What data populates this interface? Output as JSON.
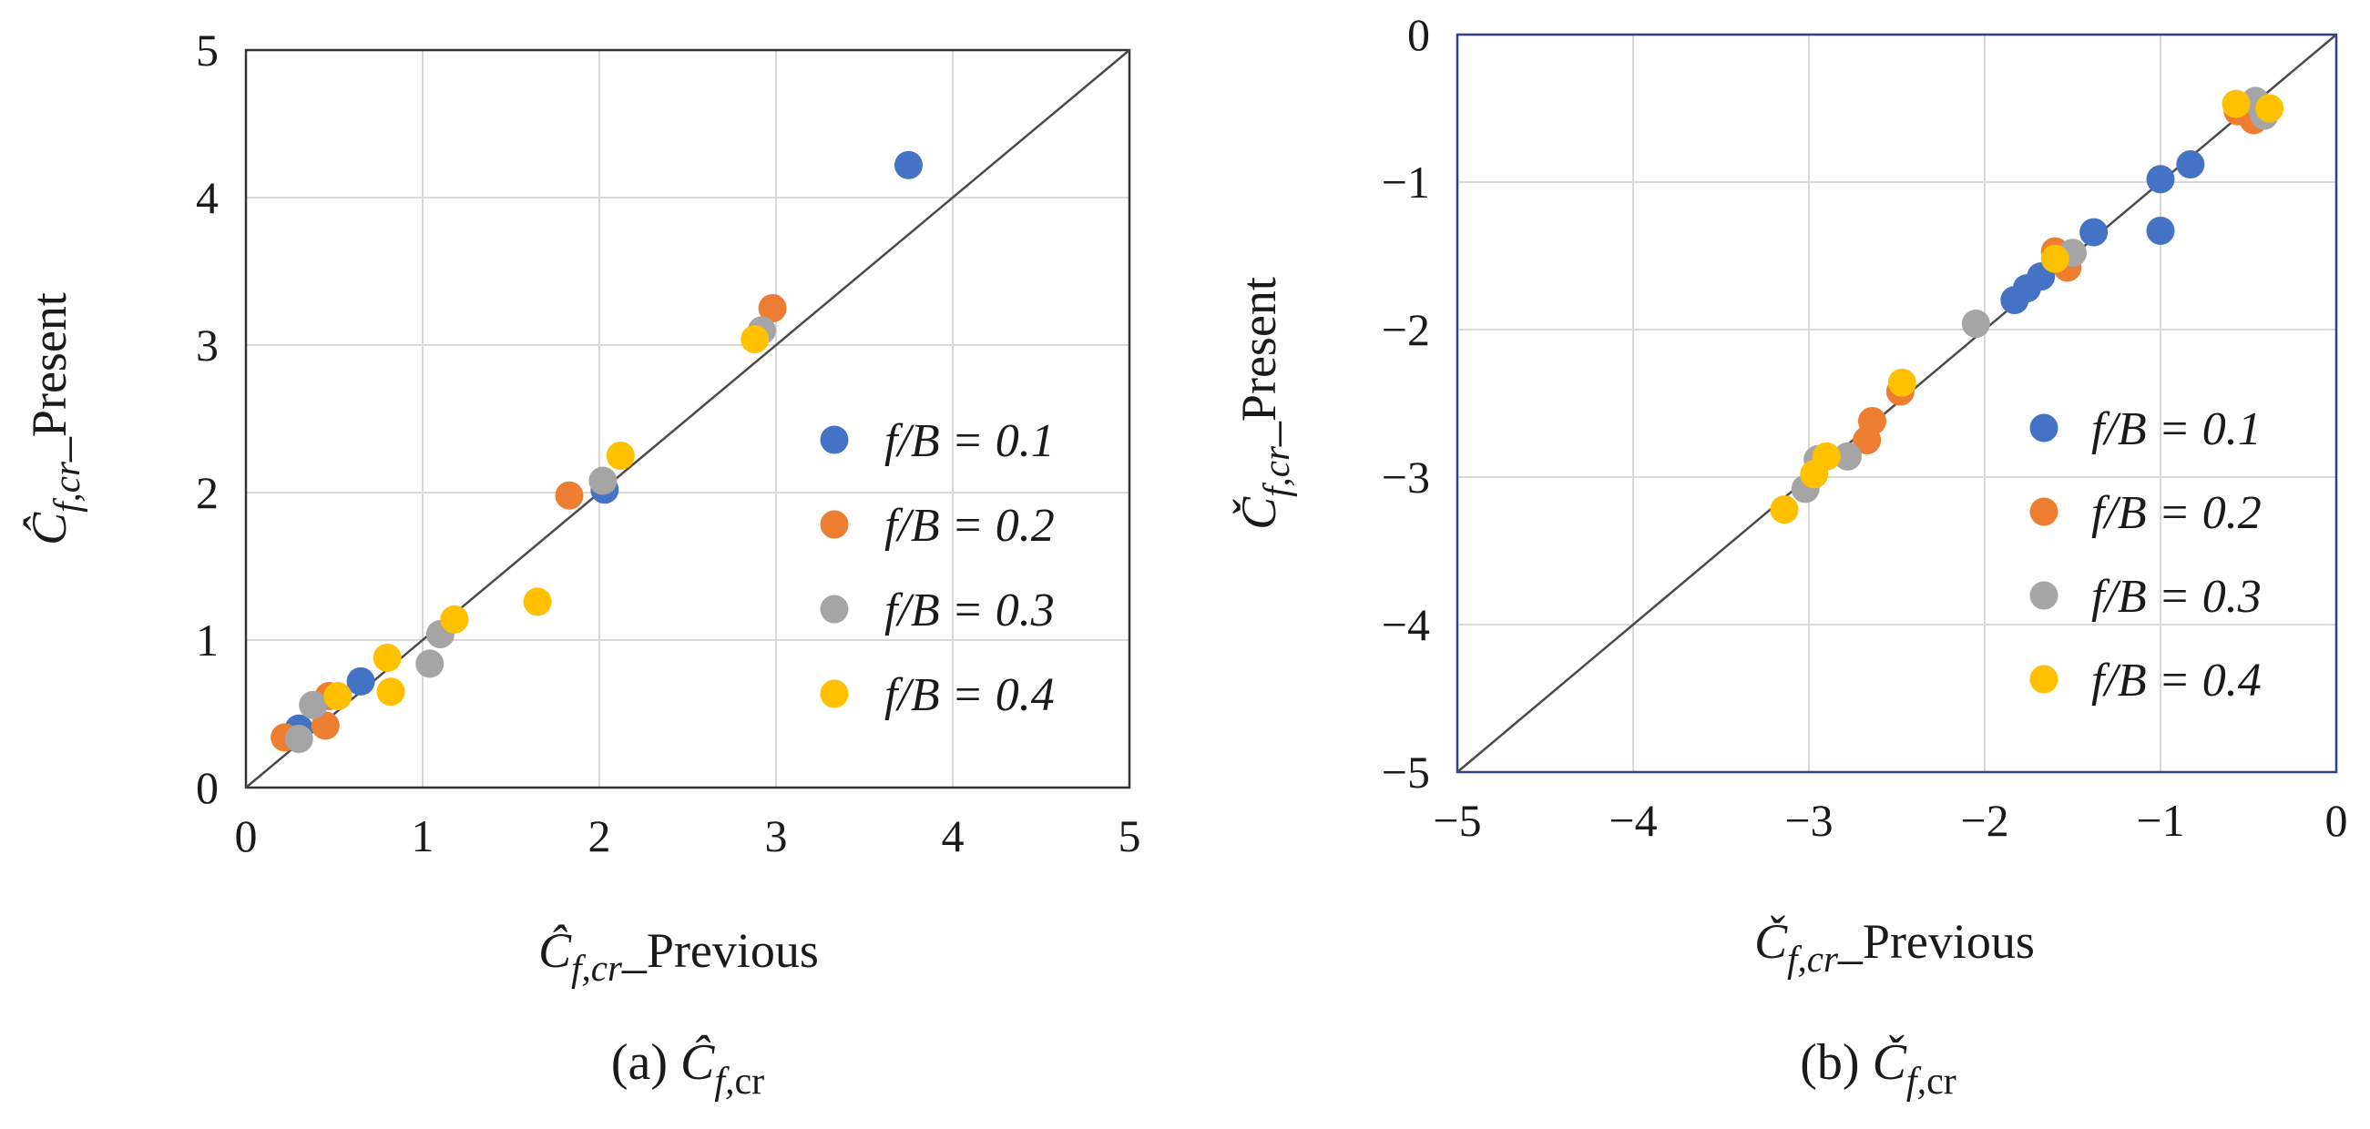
{
  "colors": {
    "s01": "#4472C4",
    "s02": "#ED7D31",
    "s03": "#A5A5A5",
    "s04": "#FFC000"
  },
  "chart_data": [
    {
      "id": "a",
      "type": "scatter",
      "caption": "(a) Ĉf,cr",
      "caption_parts": {
        "prefix": "(a)",
        "symbol": "Ĉ",
        "subscript": "f,cr"
      },
      "xlabel": "Ĉf,cr_Previous",
      "ylabel": "Ĉf,cr_Present",
      "xlabel_parts": {
        "symbol": "Ĉ",
        "subscript": "f,cr",
        "suffix": "_Previous"
      },
      "ylabel_parts": {
        "symbol": "Ĉ",
        "subscript": "f,cr",
        "suffix": "_Present"
      },
      "xlim": [
        0,
        5
      ],
      "ylim": [
        0,
        5
      ],
      "xticks": [
        "0",
        "1",
        "2",
        "3",
        "4",
        "5"
      ],
      "yticks": [
        "0",
        "1",
        "2",
        "3",
        "4",
        "5"
      ],
      "grid": true,
      "reference_line": "y = x",
      "legend_position": "right",
      "series": [
        {
          "name": "f/B = 0.1",
          "color": "#4472C4",
          "points": [
            [
              0.3,
              0.4
            ],
            [
              0.65,
              0.72
            ],
            [
              2.03,
              2.02
            ],
            [
              3.75,
              4.22
            ]
          ]
        },
        {
          "name": "f/B = 0.2",
          "color": "#ED7D31",
          "points": [
            [
              0.22,
              0.34
            ],
            [
              0.45,
              0.42
            ],
            [
              0.47,
              0.62
            ],
            [
              1.83,
              1.98
            ],
            [
              2.98,
              3.25
            ]
          ]
        },
        {
          "name": "f/B = 0.3",
          "color": "#A5A5A5",
          "points": [
            [
              0.3,
              0.33
            ],
            [
              0.38,
              0.56
            ],
            [
              1.04,
              0.84
            ],
            [
              1.1,
              1.04
            ],
            [
              2.02,
              2.08
            ],
            [
              2.92,
              3.1
            ]
          ]
        },
        {
          "name": "f/B = 0.4",
          "color": "#FFC000",
          "points": [
            [
              0.52,
              0.62
            ],
            [
              0.8,
              0.88
            ],
            [
              0.82,
              0.65
            ],
            [
              1.18,
              1.14
            ],
            [
              1.65,
              1.26
            ],
            [
              2.12,
              2.25
            ],
            [
              2.88,
              3.04
            ]
          ]
        }
      ]
    },
    {
      "id": "b",
      "type": "scatter",
      "caption": "(b) Čf,cr",
      "caption_parts": {
        "prefix": "(b)",
        "symbol": "Č",
        "subscript": "f,cr"
      },
      "xlabel": "Čf,cr_Previous",
      "ylabel": "Čf,cr_Present",
      "xlabel_parts": {
        "symbol": "Č",
        "subscript": "f,cr",
        "suffix": "_Previous"
      },
      "ylabel_parts": {
        "symbol": "Č",
        "subscript": "f,cr",
        "suffix": "_Present"
      },
      "xlim": [
        -5,
        0
      ],
      "ylim": [
        -5,
        0
      ],
      "xticks": [
        "−5",
        "−4",
        "−3",
        "−2",
        "−1",
        "0"
      ],
      "yticks": [
        "−5",
        "−4",
        "−3",
        "−2",
        "−1",
        "0"
      ],
      "grid": true,
      "reference_line": "y = x",
      "legend_position": "right",
      "series": [
        {
          "name": "f/B = 0.1",
          "color": "#4472C4",
          "points": [
            [
              -1.83,
              -1.8
            ],
            [
              -1.76,
              -1.72
            ],
            [
              -1.68,
              -1.64
            ],
            [
              -1.38,
              -1.34
            ],
            [
              -1.0,
              -0.98
            ],
            [
              -1.0,
              -1.33
            ],
            [
              -0.83,
              -0.88
            ],
            [
              -0.47,
              -0.55
            ]
          ]
        },
        {
          "name": "f/B = 0.2",
          "color": "#ED7D31",
          "points": [
            [
              -2.67,
              -2.75
            ],
            [
              -2.64,
              -2.62
            ],
            [
              -2.48,
              -2.42
            ],
            [
              -1.6,
              -1.47
            ],
            [
              -1.53,
              -1.58
            ],
            [
              -0.56,
              -0.52
            ],
            [
              -0.47,
              -0.58
            ]
          ]
        },
        {
          "name": "f/B = 0.3",
          "color": "#A5A5A5",
          "points": [
            [
              -3.02,
              -3.08
            ],
            [
              -2.95,
              -2.88
            ],
            [
              -2.78,
              -2.86
            ],
            [
              -2.05,
              -1.96
            ],
            [
              -1.5,
              -1.48
            ],
            [
              -0.46,
              -0.45
            ],
            [
              -0.41,
              -0.55
            ]
          ]
        },
        {
          "name": "f/B = 0.4",
          "color": "#FFC000",
          "points": [
            [
              -3.14,
              -3.22
            ],
            [
              -2.97,
              -2.98
            ],
            [
              -2.9,
              -2.86
            ],
            [
              -2.47,
              -2.36
            ],
            [
              -1.6,
              -1.52
            ],
            [
              -0.57,
              -0.47
            ],
            [
              -0.38,
              -0.5
            ]
          ]
        }
      ]
    }
  ]
}
